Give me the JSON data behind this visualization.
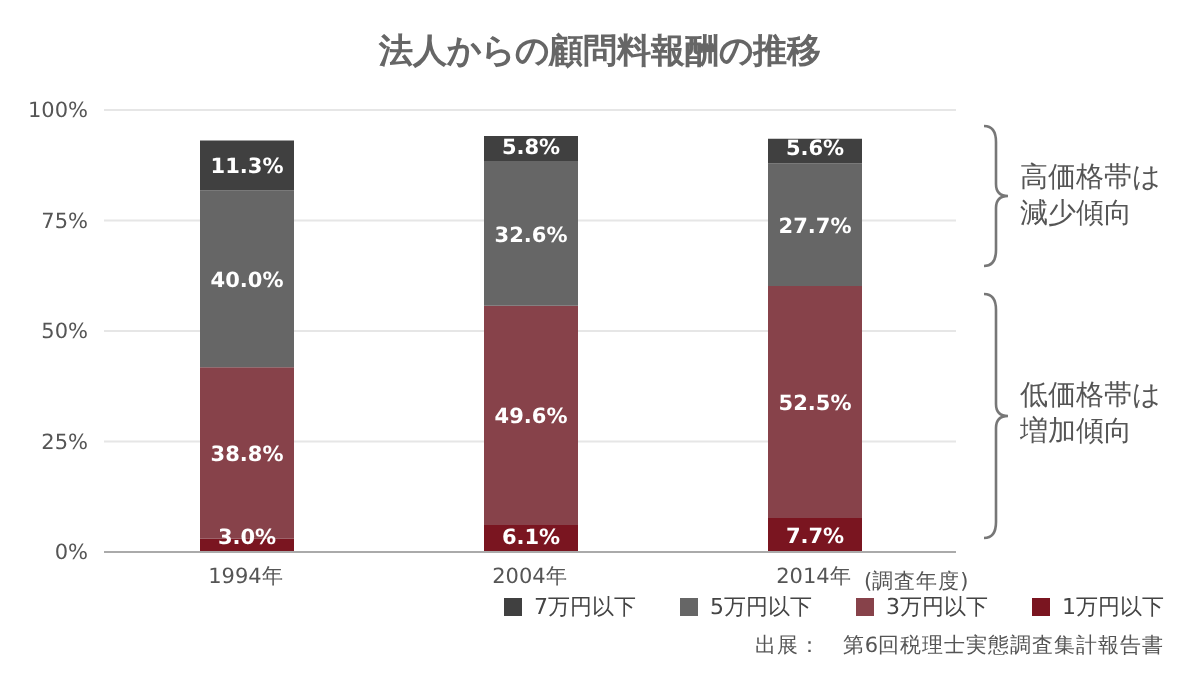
{
  "chart_data": {
    "type": "bar",
    "title": "法人からの顧問料報酬の推移",
    "xlabel": "(調査年度)",
    "categories": [
      "1994年",
      "2004年",
      "2014年"
    ],
    "stacked": true,
    "ylim": [
      0,
      100
    ],
    "yticks": [
      {
        "value": 0,
        "label": "0%"
      },
      {
        "value": 25,
        "label": "25%"
      },
      {
        "value": 50,
        "label": "50%"
      },
      {
        "value": 75,
        "label": "75%"
      },
      {
        "value": 100,
        "label": "100%"
      }
    ],
    "grid": "y",
    "legend": "bottom right",
    "series": [
      {
        "name": "1万円以下",
        "color": "#7a1520",
        "values": [
          3.0,
          6.1,
          7.7
        ],
        "value_labels": [
          "3.0%",
          "6.1%",
          "7.7%"
        ]
      },
      {
        "name": "3万円以下",
        "color": "#87424a",
        "values": [
          38.8,
          49.6,
          52.5
        ],
        "value_labels": [
          "38.8%",
          "49.6%",
          "52.5%"
        ]
      },
      {
        "name": "5万円以下",
        "color": "#666666",
        "values": [
          40.0,
          32.6,
          27.7
        ],
        "value_labels": [
          "40.0%",
          "32.6%",
          "27.7%"
        ]
      },
      {
        "name": "7万円以下",
        "color": "#404040",
        "values": [
          11.3,
          5.8,
          5.6
        ],
        "value_labels": [
          "11.3%",
          "5.8%",
          "5.6%"
        ]
      }
    ],
    "annotations": [
      "高価格帯は減少傾向",
      "低価格帯は増加傾向",
      "出展：　第6回税理士実態調査集計報告書"
    ]
  }
}
